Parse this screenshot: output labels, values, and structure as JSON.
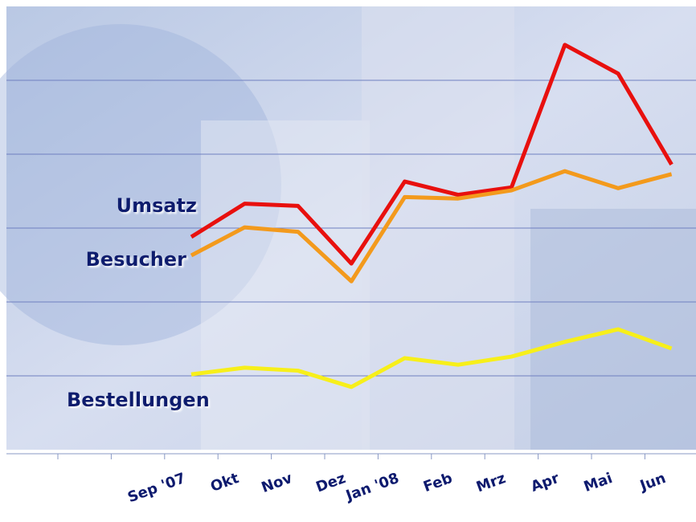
{
  "chart_data": {
    "type": "line",
    "categories": [
      "Sep '07",
      "Okt",
      "Nov",
      "Dez",
      "Jan '08",
      "Feb",
      "Mrz",
      "Apr",
      "Mai",
      "Jun"
    ],
    "series": [
      {
        "name": "Umsatz",
        "color": "#e8100e",
        "values": [
          2.88,
          3.33,
          3.3,
          2.52,
          3.63,
          3.45,
          3.55,
          5.48,
          5.09,
          3.86
        ]
      },
      {
        "name": "Besucher",
        "color": "#f39a1c",
        "values": [
          2.63,
          3.01,
          2.95,
          2.28,
          3.42,
          3.4,
          3.51,
          3.77,
          3.54,
          3.73
        ]
      },
      {
        "name": "Bestellungen",
        "color": "#f7ef1a",
        "values": [
          1.02,
          1.11,
          1.07,
          0.85,
          1.24,
          1.15,
          1.26,
          1.46,
          1.63,
          1.37
        ]
      }
    ],
    "ylim": [
      0,
      6
    ],
    "yticks": [
      1,
      2,
      3,
      4,
      5
    ],
    "grid": true
  }
}
